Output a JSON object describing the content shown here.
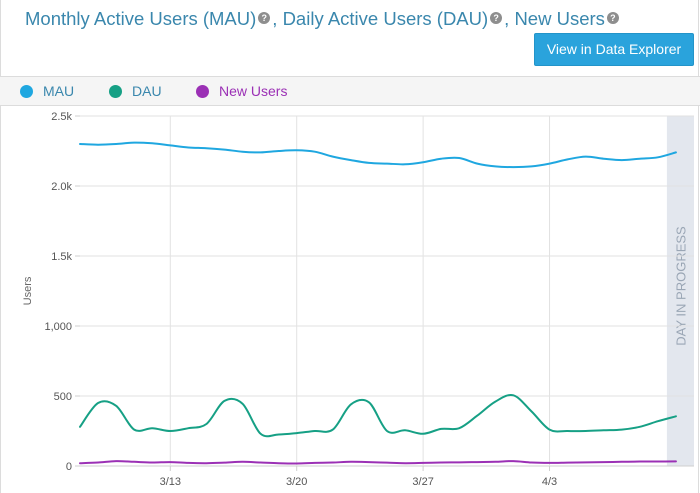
{
  "header": {
    "title_parts": [
      "Monthly Active Users (MAU)",
      ", Daily Active Users (DAU)",
      ", New Users"
    ],
    "explorer_button": "View in Data Explorer"
  },
  "legend": [
    {
      "label": "MAU",
      "color": "#1fa7e0"
    },
    {
      "label": "DAU",
      "color": "#16a085"
    },
    {
      "label": "New Users",
      "color": "#9b30b5"
    }
  ],
  "chart_data": {
    "type": "line",
    "title": "Monthly Active Users (MAU), Daily Active Users (DAU), New Users",
    "ylabel": "Users",
    "xlabel": "",
    "ylim": [
      0,
      2500
    ],
    "yticks": [
      0,
      500,
      1000,
      1500,
      2000,
      2500
    ],
    "ytick_labels": [
      "0",
      "500",
      "1,000",
      "1.5k",
      "2.0k",
      "2.5k"
    ],
    "xlim": [
      7,
      41
    ],
    "xticks": [
      12,
      19,
      26,
      33
    ],
    "xtick_labels": [
      "3/13",
      "3/20",
      "3/27",
      "4/3"
    ],
    "in_progress_label": "DAY IN PROGRESS",
    "in_progress_from": 39.5,
    "series": [
      {
        "name": "MAU",
        "color": "#1fa7e0",
        "x": [
          7,
          8,
          9,
          10,
          11,
          12,
          13,
          14,
          15,
          16,
          17,
          18,
          19,
          20,
          21,
          22,
          23,
          24,
          25,
          26,
          27,
          28,
          29,
          30,
          31,
          32,
          33,
          34,
          35,
          36,
          37,
          38,
          39,
          40
        ],
        "values": [
          2300,
          2295,
          2300,
          2310,
          2305,
          2290,
          2275,
          2270,
          2260,
          2245,
          2240,
          2250,
          2255,
          2245,
          2210,
          2185,
          2165,
          2160,
          2155,
          2170,
          2195,
          2200,
          2160,
          2140,
          2135,
          2140,
          2160,
          2190,
          2210,
          2195,
          2185,
          2195,
          2205,
          2240
        ]
      },
      {
        "name": "DAU",
        "color": "#16a085",
        "x": [
          7,
          8,
          9,
          10,
          11,
          12,
          13,
          14,
          15,
          16,
          17,
          18,
          19,
          20,
          21,
          22,
          23,
          24,
          25,
          26,
          27,
          28,
          29,
          30,
          31,
          32,
          33,
          34,
          35,
          36,
          37,
          38,
          39,
          40
        ],
        "values": [
          280,
          450,
          430,
          260,
          270,
          250,
          270,
          300,
          465,
          445,
          230,
          225,
          235,
          250,
          260,
          440,
          455,
          250,
          255,
          230,
          265,
          270,
          360,
          460,
          505,
          390,
          260,
          250,
          250,
          255,
          260,
          280,
          320,
          355
        ]
      },
      {
        "name": "New Users",
        "color": "#9b30b5",
        "x": [
          7,
          8,
          9,
          10,
          11,
          12,
          13,
          14,
          15,
          16,
          17,
          18,
          19,
          20,
          21,
          22,
          23,
          24,
          25,
          26,
          27,
          28,
          29,
          30,
          31,
          32,
          33,
          34,
          35,
          36,
          37,
          38,
          39,
          40
        ],
        "values": [
          20,
          25,
          35,
          30,
          25,
          28,
          22,
          20,
          24,
          30,
          25,
          20,
          18,
          22,
          25,
          30,
          28,
          24,
          20,
          22,
          25,
          26,
          28,
          30,
          35,
          25,
          22,
          24,
          26,
          28,
          30,
          32,
          32,
          33
        ]
      }
    ]
  }
}
